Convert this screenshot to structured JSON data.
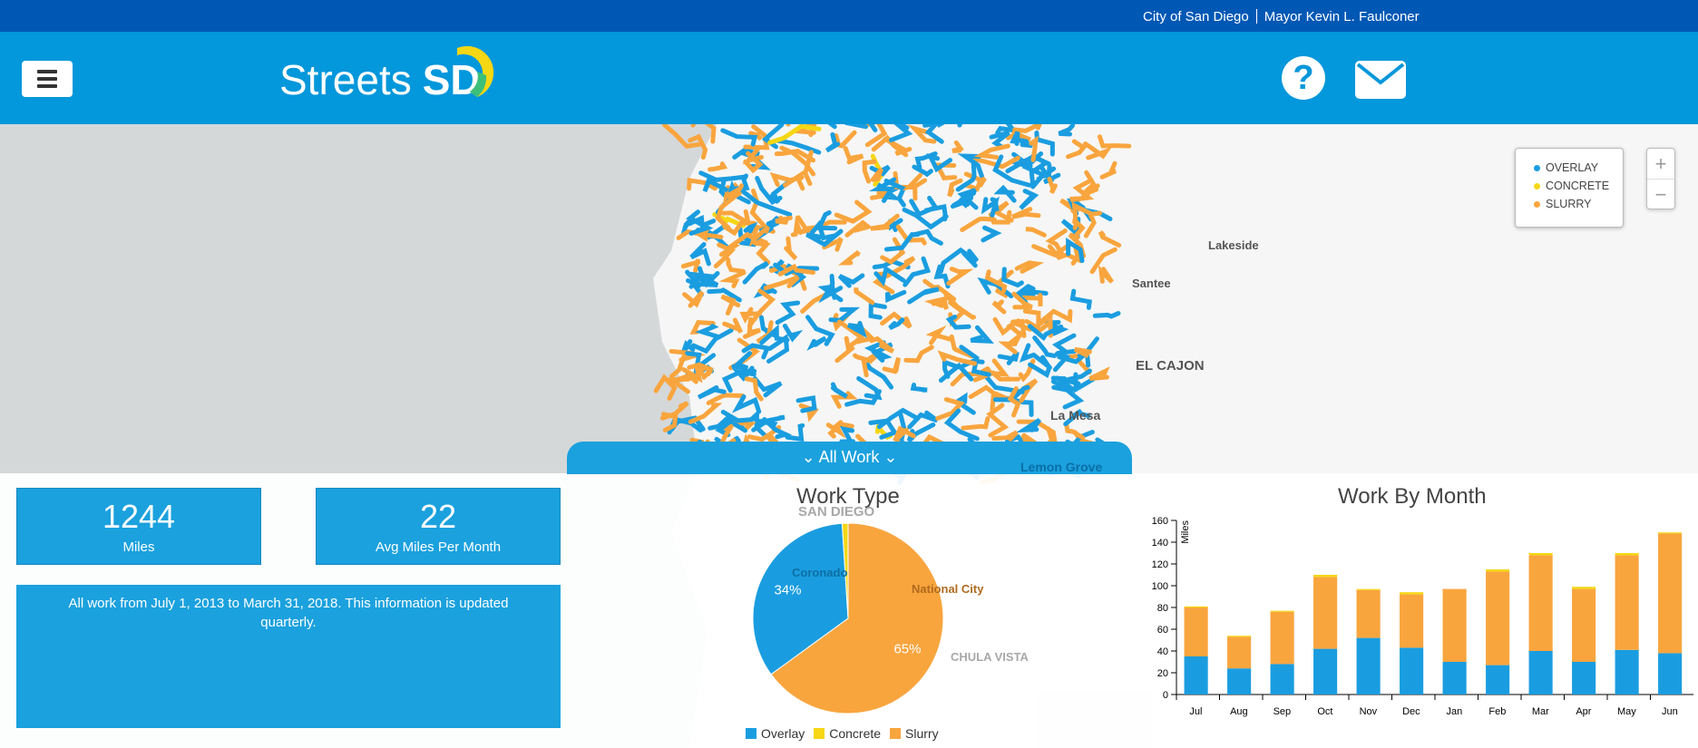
{
  "topbar": {
    "city": "City of San Diego",
    "mayor": "Mayor Kevin L. Faulconer"
  },
  "header": {
    "logo_text": "Streets",
    "logo_mark": "SD",
    "help_icon": "question-circle",
    "mail_icon": "envelope"
  },
  "map": {
    "labels": {
      "lakeside": "Lakeside",
      "santee": "Santee",
      "el_cajon": "EL CAJON",
      "la_mesa": "La Mesa",
      "lemon_grove": "Lemon Grove",
      "san_diego": "SAN DIEGO",
      "coronado": "Coronado",
      "national_city": "National City",
      "chula_vista": "CHULA VISTA"
    },
    "legend": [
      {
        "label": "OVERLAY",
        "color": "#1a9de0"
      },
      {
        "label": "CONCRETE",
        "color": "#f5d714"
      },
      {
        "label": "SLURRY",
        "color": "#f9a53e"
      }
    ],
    "zoom_in": "+",
    "zoom_out": "−",
    "filter_label": "All Work"
  },
  "stats": {
    "miles": "1244",
    "miles_label": "Miles",
    "avg": "22",
    "avg_label": "Avg Miles Per Month",
    "info": "All work from July 1, 2013 to March 31, 2018. This information is updated quarterly."
  },
  "chart_data": [
    {
      "type": "pie",
      "title": "Work Type",
      "categories": [
        "Overlay",
        "Concrete",
        "Slurry"
      ],
      "values": [
        34,
        1,
        65
      ],
      "labels": [
        "34%",
        "",
        "65%"
      ],
      "colors": [
        "#1a9de0",
        "#f5d714",
        "#f9a53e"
      ],
      "legend": "bottom"
    },
    {
      "type": "bar",
      "stacked": true,
      "title": "Work By Month",
      "ylabel": "Miles",
      "ylim": [
        0,
        160
      ],
      "yticks": [
        0,
        20,
        40,
        60,
        80,
        100,
        120,
        140,
        160
      ],
      "categories": [
        "Jul",
        "Aug",
        "Sep",
        "Oct",
        "Nov",
        "Dec",
        "Jan",
        "Feb",
        "Mar",
        "Apr",
        "May",
        "Jun"
      ],
      "series": [
        {
          "name": "Overlay",
          "color": "#1a9de0",
          "values": [
            35,
            24,
            28,
            42,
            52,
            43,
            30,
            27,
            40,
            30,
            41,
            38
          ]
        },
        {
          "name": "Slurry",
          "color": "#f9a53e",
          "values": [
            45,
            29,
            48,
            66,
            44,
            49,
            67,
            86,
            88,
            67,
            87,
            110
          ]
        },
        {
          "name": "Concrete",
          "color": "#f5d714",
          "values": [
            1,
            1,
            1,
            2,
            1,
            2,
            0,
            2,
            2,
            2,
            2,
            1
          ]
        }
      ]
    }
  ]
}
